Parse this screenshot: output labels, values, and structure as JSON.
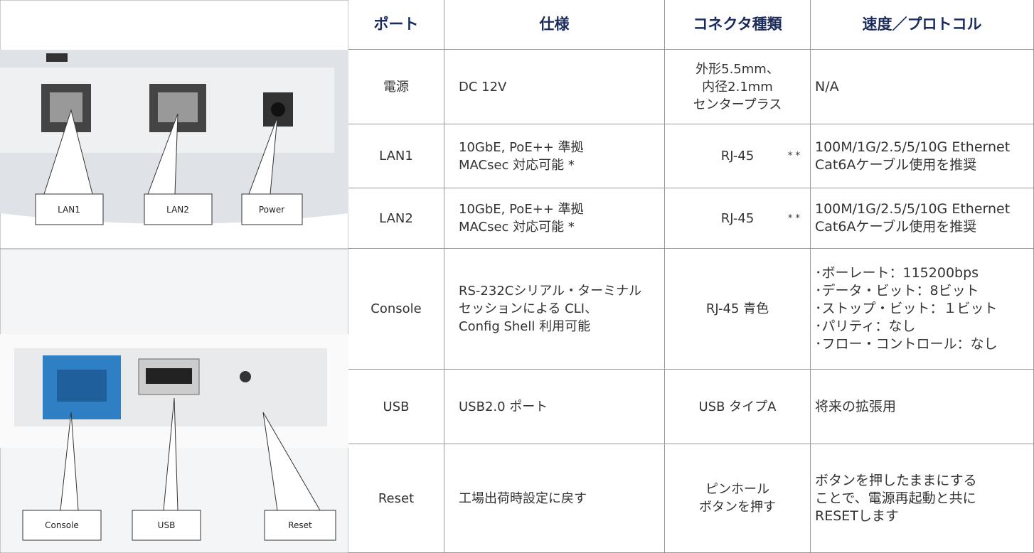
{
  "header": [
    "ポート",
    "仕様",
    "コネクタ種類",
    "速度／プロトコル"
  ],
  "rows": [
    {
      "port": "電源",
      "spec": [
        "DC 12V"
      ],
      "connector": [
        "外形5.5mm、",
        "内径2.1mm",
        "センタープラス"
      ],
      "speed": [
        "N/A"
      ]
    },
    {
      "port": "LAN1",
      "spec": [
        "10GbE, PoE++ 準拠",
        "MACsec 対応可能 *"
      ],
      "connector": [
        "RJ-45"
      ],
      "connector_note": "* *",
      "speed": [
        "100M/1G/2.5/5/10G Ethernet",
        "Cat6Aケーブル使用を推奨"
      ]
    },
    {
      "port": "LAN2",
      "spec": [
        "10GbE, PoE++ 準拠",
        "MACsec 対応可能 *"
      ],
      "connector": [
        "RJ-45"
      ],
      "connector_note": "* *",
      "speed": [
        "100M/1G/2.5/5/10G Ethernet",
        "Cat6Aケーブル使用を推奨"
      ]
    },
    {
      "port": "Console",
      "spec": [
        "RS-232Cシリアル・ターミナル",
        "セッションによる CLI、",
        "Config Shell 利用可能"
      ],
      "connector": [
        "RJ-45 青色"
      ],
      "speed": [
        "･ボーレート：115200bps",
        "･データ・ビット：8ビット",
        "･ストップ・ビット：１ビット",
        "･パリティ：なし",
        "･フロー・コントロール：なし"
      ]
    },
    {
      "port": "USB",
      "spec": [
        "USB2.0 ポート"
      ],
      "connector": [
        "USB タイプA"
      ],
      "speed": [
        "将来の拡張用"
      ]
    },
    {
      "port": "Reset",
      "spec": [
        "工場出荷時設定に戻す"
      ],
      "connector": [
        "ピンホール",
        "ボタンを押す"
      ],
      "speed": [
        "ボタンを押したままにする",
        "ことで、電源再起動と共に",
        "RESETします"
      ]
    }
  ],
  "images": [
    {
      "labels": [
        "LAN1",
        "LAN2",
        "Power"
      ]
    },
    {
      "labels": [
        "Console",
        "USB",
        "Reset"
      ]
    }
  ]
}
